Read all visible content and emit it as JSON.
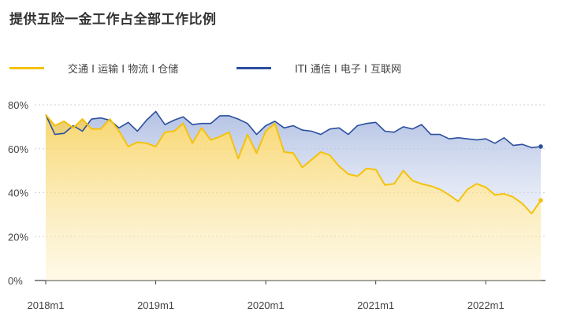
{
  "chart_data": {
    "type": "area",
    "title": "提供五险一金工作占全部工作比例",
    "ylim": [
      0,
      80
    ],
    "yticks": [
      "0%",
      "20%",
      "40%",
      "60%",
      "80%"
    ],
    "ytick_values": [
      0,
      20,
      40,
      60,
      80
    ],
    "xticks": [
      "2018m1",
      "2019m1",
      "2020m1",
      "2021m1",
      "2022m1"
    ],
    "xtick_positions": [
      0,
      12,
      24,
      36,
      48
    ],
    "x_start": "2018m1",
    "x_end": "2022m7",
    "grid": "horizontal",
    "legend_position": "top-left",
    "series": [
      {
        "name": "交通 I 运输 I 物流 I 仓储",
        "color": "#f4c20d",
        "values": [
          75.5,
          70.5,
          72.5,
          69.5,
          73.5,
          69,
          69,
          73.5,
          68,
          61,
          63,
          62.5,
          61,
          67.5,
          68,
          71.5,
          62.5,
          69.5,
          64,
          65.5,
          67.5,
          55.5,
          66.5,
          58,
          68,
          71.5,
          58.5,
          58,
          51.5,
          55,
          58.5,
          57,
          52,
          48.5,
          47.5,
          51,
          50.5,
          43.5,
          44,
          50,
          45.5,
          44,
          43,
          41.5,
          39,
          36,
          41.5,
          44,
          42.5,
          39,
          39.5,
          38,
          35,
          30.5,
          36.5
        ]
      },
      {
        "name": "ITI 通信 I 电子 I 互联网",
        "color": "#2c4f9e",
        "values": [
          75.5,
          66.5,
          67,
          70.5,
          68,
          73.5,
          74,
          73,
          69.5,
          72,
          68,
          73,
          77,
          71,
          73,
          74.5,
          71,
          71.5,
          71.5,
          75,
          75,
          73.5,
          71.5,
          66.5,
          70.5,
          72.5,
          69.5,
          70.5,
          68.5,
          68,
          66.5,
          69,
          69.5,
          66.5,
          70.5,
          71.5,
          72,
          68,
          67.5,
          70,
          69,
          71,
          66.5,
          66.5,
          64.5,
          65,
          64.5,
          64,
          64.5,
          62.5,
          65,
          61.5,
          62,
          60.5,
          61
        ]
      }
    ]
  }
}
